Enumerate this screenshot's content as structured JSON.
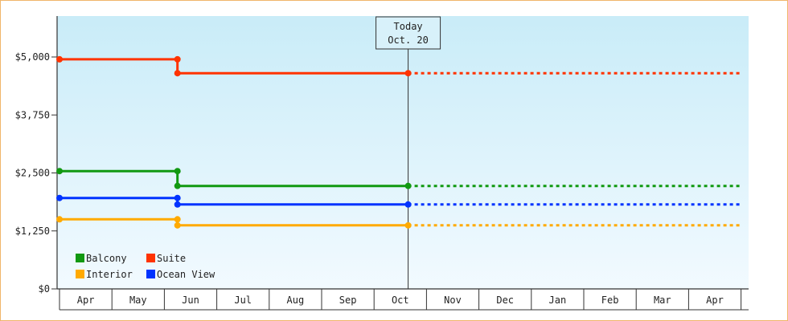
{
  "chart_data": {
    "type": "line",
    "step": true,
    "ylim": [
      0,
      5875
    ],
    "yticks": [
      {
        "value": 0,
        "label": "$0"
      },
      {
        "value": 1250,
        "label": "$1,250"
      },
      {
        "value": 2500,
        "label": "$2,500"
      },
      {
        "value": 3750,
        "label": "$3,750"
      },
      {
        "value": 5000,
        "label": "$5,000"
      }
    ],
    "xticks": [
      "Apr",
      "May",
      "Jun",
      "Jul",
      "Aug",
      "Sep",
      "Oct",
      "Nov",
      "Dec",
      "Jan",
      "Feb",
      "Mar",
      "Apr"
    ],
    "x_range_months": [
      0,
      13
    ],
    "today": {
      "title": "Today",
      "date": "Oct. 20",
      "x": 6.65
    },
    "series": [
      {
        "name": "Suite",
        "color": "#ff3300",
        "points": [
          [
            0,
            4950
          ],
          [
            2.25,
            4950
          ],
          [
            2.25,
            4650
          ],
          [
            6.65,
            4650
          ]
        ],
        "projection": [
          [
            6.65,
            4650
          ],
          [
            13,
            4650
          ]
        ]
      },
      {
        "name": "Balcony",
        "color": "#119911",
        "points": [
          [
            0,
            2540
          ],
          [
            2.25,
            2540
          ],
          [
            2.25,
            2220
          ],
          [
            6.65,
            2220
          ]
        ],
        "projection": [
          [
            6.65,
            2220
          ],
          [
            13,
            2220
          ]
        ]
      },
      {
        "name": "Ocean View",
        "color": "#0033ff",
        "points": [
          [
            0,
            1960
          ],
          [
            2.25,
            1960
          ],
          [
            2.25,
            1820
          ],
          [
            6.65,
            1820
          ]
        ],
        "projection": [
          [
            6.65,
            1820
          ],
          [
            13,
            1820
          ]
        ]
      },
      {
        "name": "Interior",
        "color": "#ffaa00",
        "points": [
          [
            0,
            1500
          ],
          [
            2.25,
            1500
          ],
          [
            2.25,
            1370
          ],
          [
            6.65,
            1370
          ]
        ],
        "projection": [
          [
            6.65,
            1370
          ],
          [
            13,
            1370
          ]
        ]
      }
    ],
    "legend": {
      "placement": "bottom-left",
      "rows": [
        [
          "Balcony",
          "Suite"
        ],
        [
          "Interior",
          "Ocean View"
        ]
      ]
    },
    "grid": false,
    "background_gradient": [
      "#c9ecf8",
      "#f2faff"
    ]
  }
}
